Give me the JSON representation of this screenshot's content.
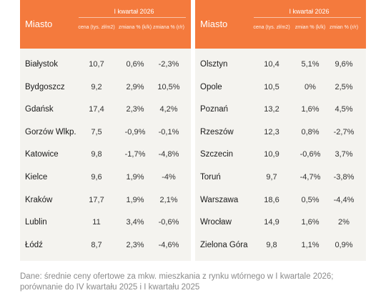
{
  "quarter_label": "I kwartał 2026",
  "city_header": "Miasto",
  "col_price": "cena (tys. zł/m2)",
  "left_col_change_qq": "zmiana % (k/k)",
  "left_col_change_yy": "zmiana % (r/r)",
  "right_col_change_qq": "zmian % (k/k)",
  "right_col_change_yy": "zmian % (r/r)",
  "left_rows": [
    {
      "city": "Białystok",
      "price": "10,7",
      "qq": "0,6%",
      "yy": "-2,3%"
    },
    {
      "city": "Bydgoszcz",
      "price": "9,2",
      "qq": "2,9%",
      "yy": "10,5%"
    },
    {
      "city": "Gdańsk",
      "price": "17,4",
      "qq": "2,3%",
      "yy": "4,2%"
    },
    {
      "city": "Gorzów Wlkp.",
      "price": "7,5",
      "qq": "-0,9%",
      "yy": "-0,1%"
    },
    {
      "city": "Katowice",
      "price": "9,8",
      "qq": "-1,7%",
      "yy": "-4,8%"
    },
    {
      "city": "Kielce",
      "price": "9,6",
      "qq": "1,9%",
      "yy": "-4%"
    },
    {
      "city": "Kraków",
      "price": "17,7",
      "qq": "1,9%",
      "yy": "2,1%"
    },
    {
      "city": "Lublin",
      "price": "11",
      "qq": "3,4%",
      "yy": "-0,6%"
    },
    {
      "city": "Łódź",
      "price": "8,7",
      "qq": "2,3%",
      "yy": "-4,6%"
    }
  ],
  "right_rows": [
    {
      "city": "Olsztyn",
      "price": "10,4",
      "qq": "5,1%",
      "yy": "9,6%"
    },
    {
      "city": "Opole",
      "price": "10,5",
      "qq": "0%",
      "yy": "2,5%"
    },
    {
      "city": "Poznań",
      "price": "13,2",
      "qq": "1,6%",
      "yy": "4,5%"
    },
    {
      "city": "Rzeszów",
      "price": "12,3",
      "qq": "0,8%",
      "yy": "-2,7%"
    },
    {
      "city": "Szczecin",
      "price": "10,9",
      "qq": "-0,6%",
      "yy": "3,7%"
    },
    {
      "city": "Toruń",
      "price": "9,7",
      "qq": "-4,7%",
      "yy": "-3,8%"
    },
    {
      "city": "Warszawa",
      "price": "18,6",
      "qq": "0,5%",
      "yy": "-4,4%"
    },
    {
      "city": "Wrocław",
      "price": "14,9",
      "qq": "1,6%",
      "yy": "2%"
    },
    {
      "city": "Zielona Góra",
      "price": "9,8",
      "qq": "1,1%",
      "yy": "0,9%"
    }
  ],
  "note": "Dane: średnie ceny ofertowe za mkw. mieszkania z rynku wtórnego w I kwartale 2026; porównanie do IV kwartału 2025 i I kwartału 2025",
  "colors": {
    "header_bg": "#f47a3d",
    "panel_bg": "#f4f3ef",
    "note_text": "#8a8a8a"
  }
}
